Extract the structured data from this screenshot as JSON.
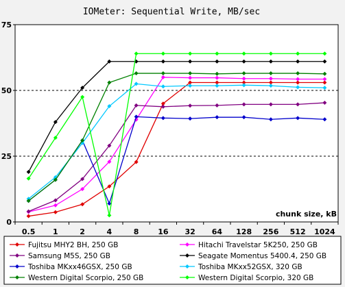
{
  "chart_data": {
    "type": "line",
    "title": "IOMeter: Sequential  Write, MB/sec",
    "xlabel": "chunk size, kB",
    "ylabel": "",
    "categories": [
      "0.5",
      "1",
      "2",
      "4",
      "8",
      "16",
      "32",
      "64",
      "128",
      "256",
      "512",
      "1024"
    ],
    "yticks": [
      "0",
      "25",
      "50",
      "75"
    ],
    "ylim": [
      0,
      75
    ],
    "grid": "horizontal dashed at 25 and 50",
    "legend_position": "bottom",
    "series": [
      {
        "name": "Fujitsu MHY2 BH, 250 GB",
        "color": "#e00000",
        "values": [
          2.2,
          3.7,
          6.7,
          13.5,
          22.8,
          45.0,
          53.0,
          53.0,
          53.0,
          53.0,
          53.0,
          53.0
        ]
      },
      {
        "name": "Hitachi Travelstar 5K250, 250 GB",
        "color": "#ff00ff",
        "values": [
          3.8,
          6.3,
          12.5,
          22.9,
          38.9,
          55.0,
          54.8,
          54.8,
          54.5,
          54.5,
          54.3,
          54.3
        ]
      },
      {
        "name": "Samsung M5S, 250 GB",
        "color": "#800080",
        "values": [
          4.0,
          8.2,
          16.3,
          29.0,
          44.3,
          43.8,
          44.2,
          44.3,
          44.7,
          44.7,
          44.7,
          45.3
        ]
      },
      {
        "name": "Seagate Momentus 5400.4, 250 GB",
        "color": "#000000",
        "values": [
          19.0,
          38.0,
          51.0,
          61.0,
          61.0,
          61.0,
          61.0,
          61.0,
          61.0,
          61.0,
          61.0,
          61.0
        ]
      },
      {
        "name": "Toshiba MKxx46GSX, 250 GB",
        "color": "#0000cc",
        "values": [
          8.0,
          16.0,
          31.0,
          7.0,
          40.0,
          39.5,
          39.3,
          39.8,
          39.8,
          39.0,
          39.5,
          39.0
        ]
      },
      {
        "name": "Toshiba MKxx52GSX, 320 GB",
        "color": "#00c8ff",
        "values": [
          8.8,
          17.0,
          30.0,
          44.0,
          52.5,
          51.5,
          51.8,
          51.8,
          52.0,
          51.8,
          51.2,
          51.0
        ]
      },
      {
        "name": "Western Digital Scorpio, 250 GB",
        "color": "#008000",
        "values": [
          8.0,
          16.0,
          31.0,
          53.0,
          56.5,
          56.5,
          56.5,
          56.3,
          56.5,
          56.5,
          56.5,
          56.3
        ]
      },
      {
        "name": "Western Digital Scorpio, 320 GB",
        "color": "#00ff00",
        "values": [
          16.5,
          32.0,
          47.5,
          2.5,
          64.0,
          64.0,
          64.0,
          64.0,
          64.0,
          64.0,
          64.0,
          64.0
        ]
      }
    ]
  }
}
